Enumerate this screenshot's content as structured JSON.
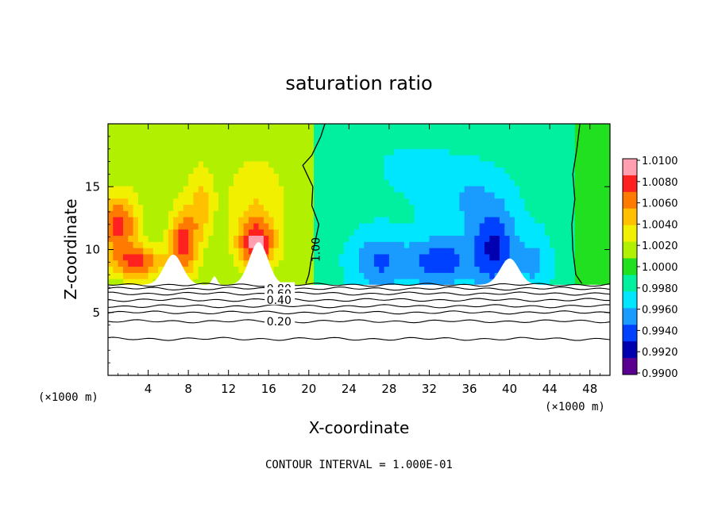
{
  "chart_data": {
    "type": "heatmap",
    "title": "saturation ratio",
    "xlabel": "X-coordinate",
    "ylabel": "Z-coordinate",
    "x_unit": "(×1000 m)",
    "x_unit_right": "(×1000 m)",
    "xlim": [
      0,
      50
    ],
    "ylim": [
      0,
      20
    ],
    "x_ticks": [
      4,
      8,
      12,
      16,
      20,
      24,
      28,
      32,
      36,
      40,
      44,
      48
    ],
    "y_ticks": [
      5,
      10,
      15
    ],
    "colorbar": {
      "labels": [
        "1.0100",
        "1.0080",
        "1.0060",
        "1.0040",
        "1.0020",
        "1.0000",
        "0.9980",
        "0.9960",
        "0.9940",
        "0.9920",
        "0.9900"
      ],
      "min": 0.99,
      "max": 1.01,
      "colors": [
        "#ff9fb0",
        "#ff2020",
        "#ff7a00",
        "#ffc000",
        "#f0f000",
        "#b0f000",
        "#20e020",
        "#00f0a0",
        "#00e6ff",
        "#1a9cff",
        "#0040ff",
        "#0000b0",
        "#5a0090"
      ]
    },
    "contour_labels": [
      "1.00",
      "0.80",
      "0.60",
      "0.40",
      "0.20"
    ],
    "contour_interval_text": "CONTOUR INTERVAL =  1.000E-01",
    "surface_z": 7.2,
    "contours_below_surface": [
      {
        "label": "0.80",
        "z": 6.9
      },
      {
        "label": "0.60",
        "z": 6.5
      },
      {
        "label": "0.40",
        "z": 6.0
      },
      {
        "label": "0.20",
        "z": 4.3
      },
      {
        "label": "",
        "z": 7.2
      },
      {
        "label": "",
        "z": 5.5
      },
      {
        "label": "",
        "z": 5.0
      },
      {
        "label": "",
        "z": 2.9
      }
    ],
    "contour_1_00_x": [
      {
        "z": 20,
        "x": 21.6
      },
      {
        "z": 19,
        "x": 21.2
      },
      {
        "z": 17.5,
        "x": 20.3
      },
      {
        "z": 16.7,
        "x": 19.4
      },
      {
        "z": 15,
        "x": 20.4
      },
      {
        "z": 13.5,
        "x": 20.3
      },
      {
        "z": 12,
        "x": 21.0
      },
      {
        "z": 10.5,
        "x": 20.6
      },
      {
        "z": 9.5,
        "x": 20.3
      },
      {
        "z": 8.0,
        "x": 20.0
      },
      {
        "z": 7.3,
        "x": 19.7
      }
    ],
    "contour_1_00_x_right": [
      {
        "z": 20,
        "x": 47.0
      },
      {
        "z": 18,
        "x": 46.7
      },
      {
        "z": 16,
        "x": 46.3
      },
      {
        "z": 14,
        "x": 46.5
      },
      {
        "z": 12,
        "x": 46.2
      },
      {
        "z": 10,
        "x": 46.3
      },
      {
        "z": 8,
        "x": 46.6
      },
      {
        "z": 7.3,
        "x": 47.2
      }
    ],
    "field_features": [
      {
        "x": 1.0,
        "z": 12.0,
        "value": 1.0075,
        "sx": 2.0,
        "sz": 2.4
      },
      {
        "x": 3.0,
        "z": 9.0,
        "value": 1.0072,
        "sx": 2.5,
        "sz": 1.3
      },
      {
        "x": 7.5,
        "z": 10.5,
        "value": 1.0078,
        "sx": 1.4,
        "sz": 2.6
      },
      {
        "x": 9.3,
        "z": 13.5,
        "value": 1.0045,
        "sx": 1.2,
        "sz": 2.8
      },
      {
        "x": 14.8,
        "z": 10.5,
        "value": 1.009,
        "sx": 1.9,
        "sz": 2.0
      },
      {
        "x": 14.8,
        "z": 14.5,
        "value": 1.0035,
        "sx": 3.0,
        "sz": 3.0
      },
      {
        "x": 6.0,
        "z": 16.5,
        "value": 1.0018,
        "sx": 4.0,
        "sz": 2.5
      },
      {
        "x": 27.0,
        "z": 9.0,
        "value": 0.9945,
        "sx": 2.8,
        "sz": 2.4
      },
      {
        "x": 33.0,
        "z": 9.0,
        "value": 0.9935,
        "sx": 3.2,
        "sz": 2.0
      },
      {
        "x": 38.5,
        "z": 10.0,
        "value": 0.993,
        "sx": 2.2,
        "sz": 3.2
      },
      {
        "x": 42.5,
        "z": 9.0,
        "value": 0.9958,
        "sx": 1.6,
        "sz": 2.5
      },
      {
        "x": 30.0,
        "z": 16.5,
        "value": 0.9975,
        "sx": 5.0,
        "sz": 3.0
      },
      {
        "x": 36.0,
        "z": 14.0,
        "value": 0.9962,
        "sx": 4.0,
        "sz": 2.8
      }
    ],
    "terrain_peaks": [
      {
        "x": 6.5,
        "z": 9.6
      },
      {
        "x": 10.6,
        "z": 7.9
      },
      {
        "x": 15.0,
        "z": 10.6
      },
      {
        "x": 40.0,
        "z": 9.3
      }
    ],
    "grid": false
  }
}
